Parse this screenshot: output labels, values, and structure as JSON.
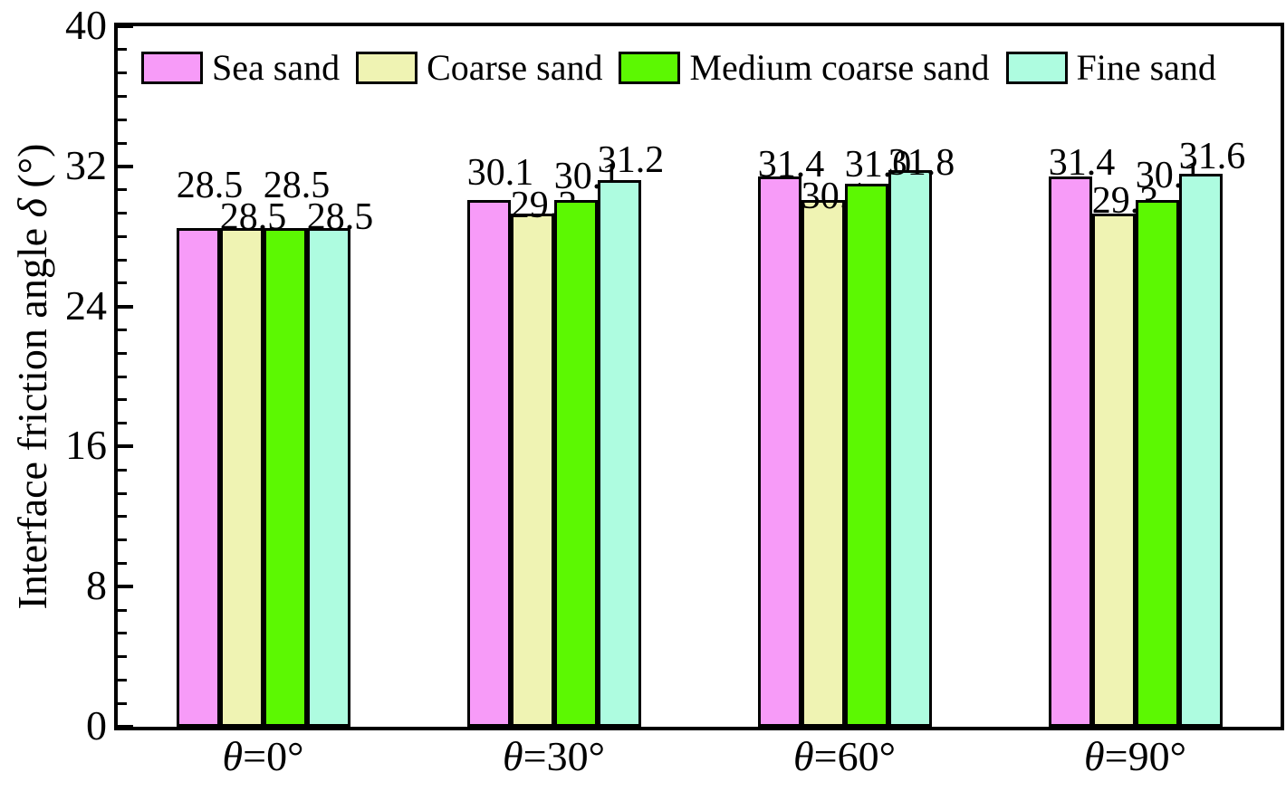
{
  "chart_data": {
    "type": "bar",
    "title": "",
    "xlabel": "",
    "ylabel": "Interface friction angle δ (°)",
    "categories": [
      "θ=0°",
      "θ=30°",
      "θ=60°",
      "θ=90°"
    ],
    "series": [
      {
        "name": "Sea sand",
        "color": "#F79BF8",
        "values": [
          28.5,
          30.1,
          31.4,
          31.4
        ]
      },
      {
        "name": "Coarse sand",
        "color": "#EFF3B3",
        "values": [
          28.5,
          29.3,
          30.1,
          29.3
        ]
      },
      {
        "name": "Medium coarse sand",
        "color": "#5CF802",
        "values": [
          28.5,
          30.1,
          31.0,
          30.1
        ]
      },
      {
        "name": "Fine sand",
        "color": "#AEFCE0",
        "values": [
          28.5,
          31.2,
          31.8,
          31.6
        ]
      }
    ],
    "value_labels": [
      [
        "28.5",
        "28.5",
        "28.5",
        "28.5"
      ],
      [
        "30.1",
        "29.3",
        "30.1",
        "31.2"
      ],
      [
        "31.4",
        "30.1",
        "31.0",
        "31.8"
      ],
      [
        "31.4",
        "29.3",
        "30.1",
        "31.6"
      ]
    ],
    "ylim": [
      0,
      40
    ],
    "yticks": [
      0,
      8,
      16,
      24,
      32,
      40
    ],
    "minor_ticks_per_interval": 5,
    "grid": false,
    "legend_position": "top-inside",
    "axis_color": "#000000",
    "background_color": "#FFFFFF",
    "bar_border_color": "#000000"
  }
}
